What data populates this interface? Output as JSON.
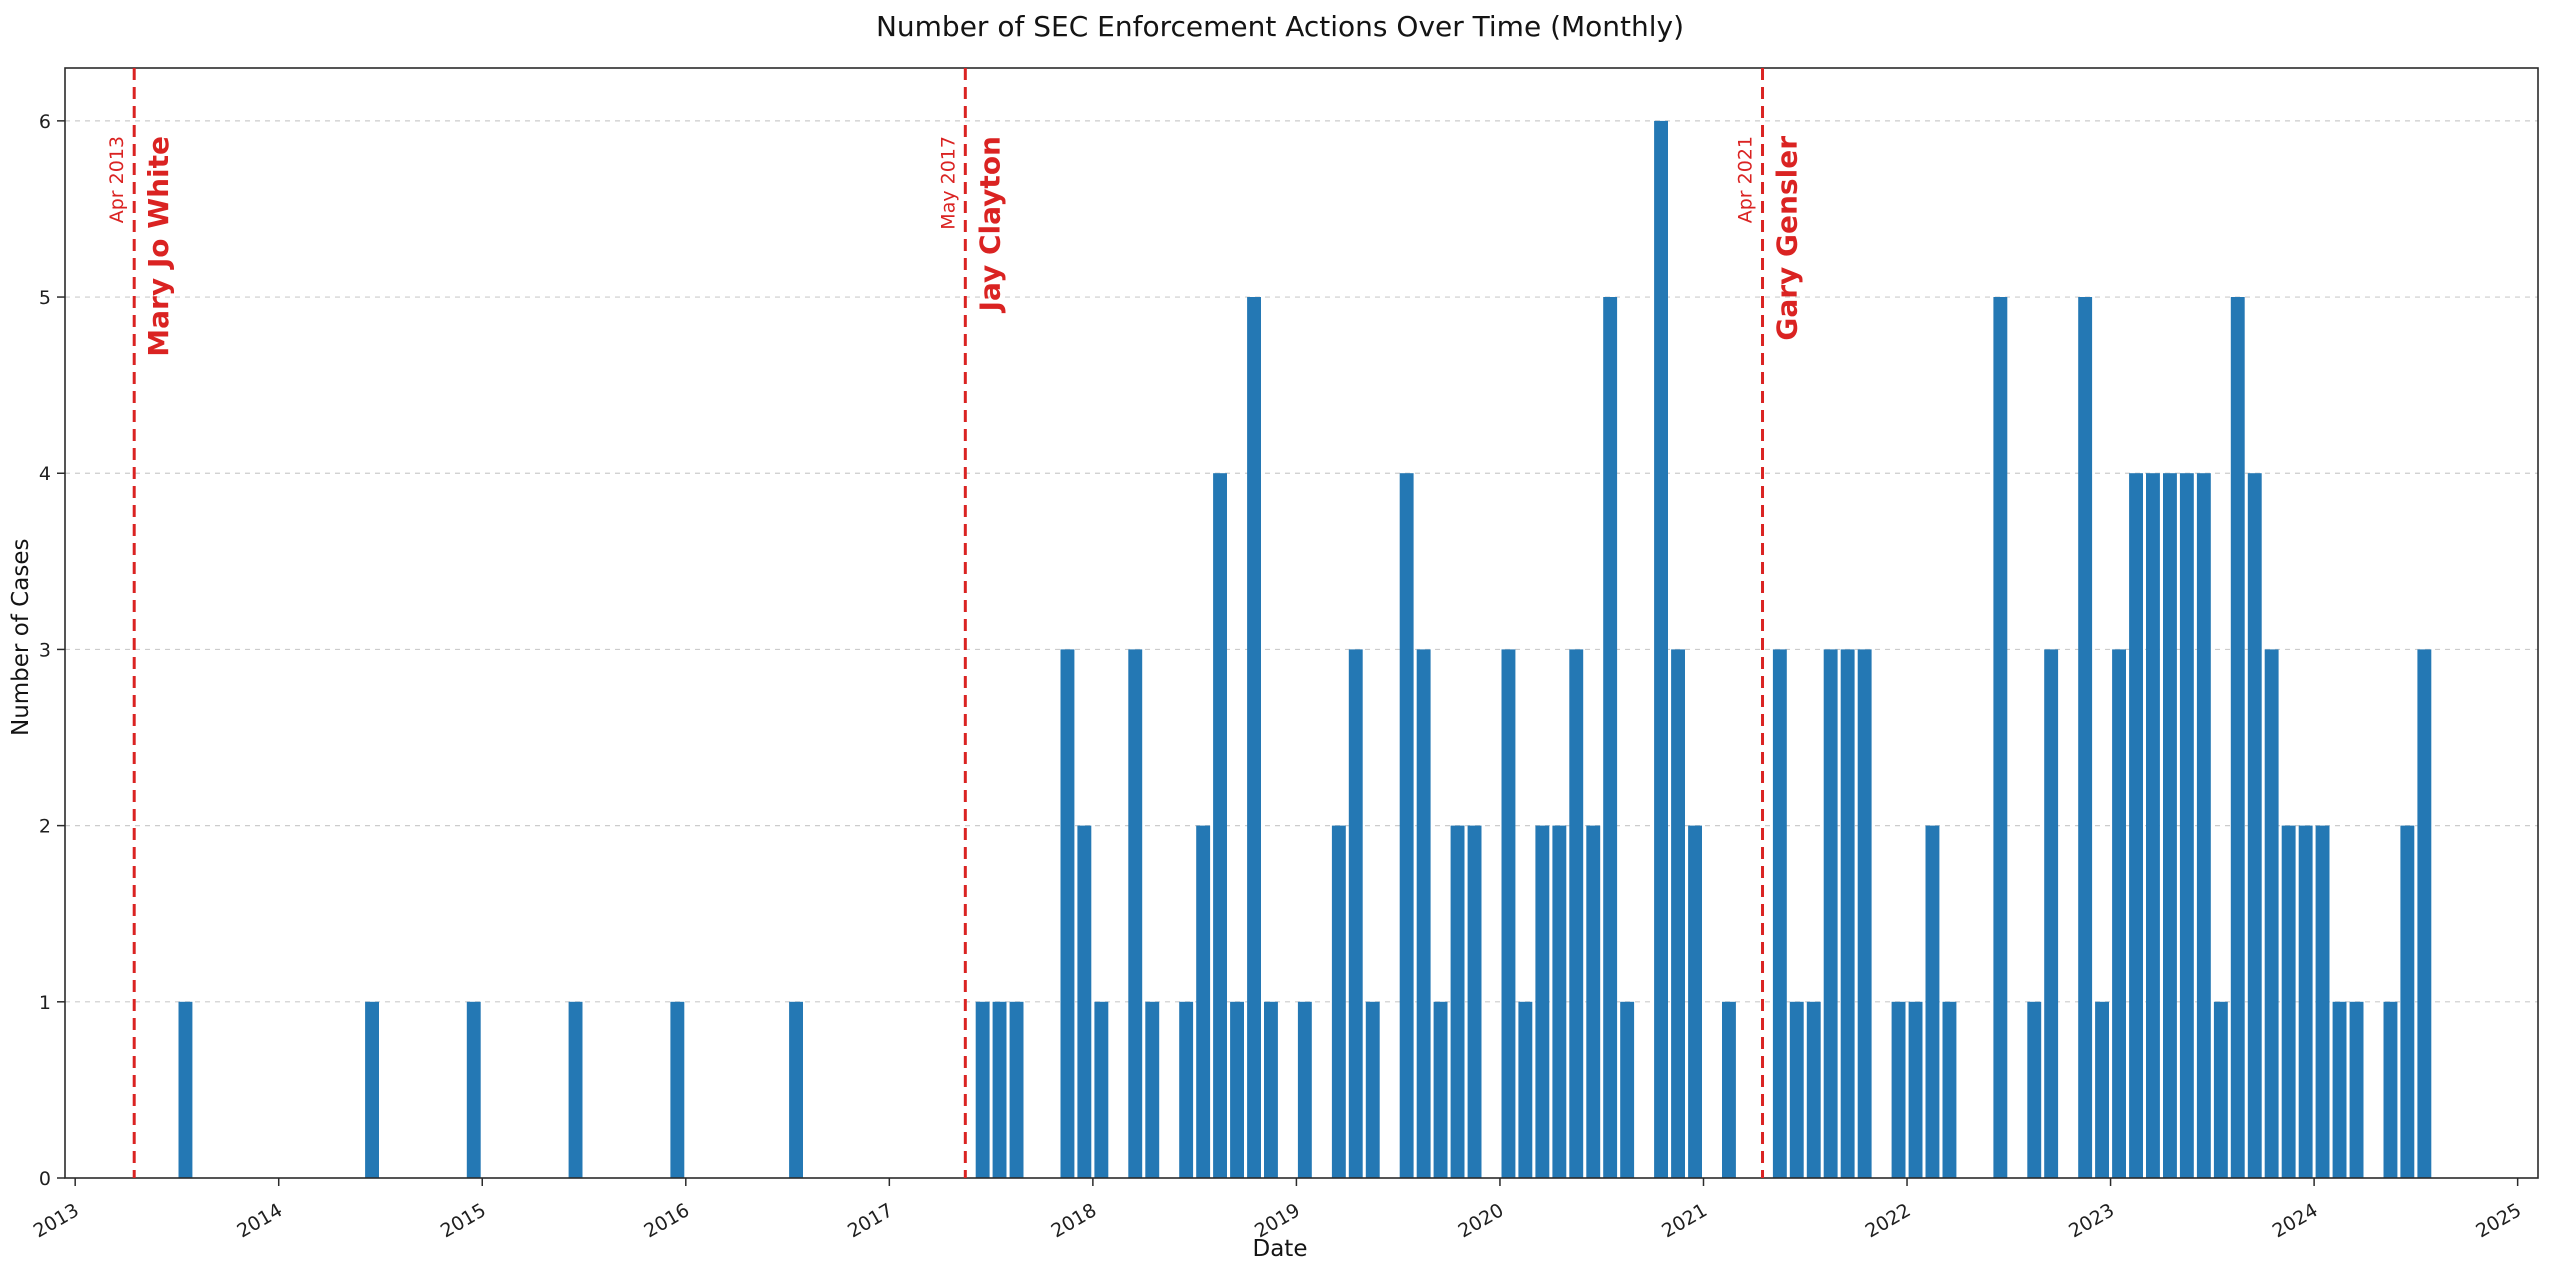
{
  "colors": {
    "bar": "#2478b4",
    "event": "#da2322",
    "grid": "#cccccc",
    "spine": "#2b2b2b",
    "tick_text": "#1f1f1f"
  },
  "chart_data": {
    "type": "bar",
    "title": "Number of SEC Enforcement Actions Over Time (Monthly)",
    "xlabel": "Date",
    "ylabel": "Number of Cases",
    "x_unit": "month",
    "x_domain_years": [
      2012.95,
      2025.1
    ],
    "ylim": [
      0,
      6.3
    ],
    "grid": "horizontal-dashed",
    "legend": "none",
    "x_tick_labels": [
      "2013",
      "2014",
      "2015",
      "2016",
      "2017",
      "2018",
      "2019",
      "2020",
      "2021",
      "2022",
      "2023",
      "2024",
      "2025"
    ],
    "y_tick_labels": [
      "0",
      "1",
      "2",
      "3",
      "4",
      "5",
      "6"
    ],
    "points": [
      [
        "2013-07",
        1
      ],
      [
        "2014-06",
        1
      ],
      [
        "2014-12",
        1
      ],
      [
        "2015-06",
        1
      ],
      [
        "2015-12",
        1
      ],
      [
        "2016-07",
        1
      ],
      [
        "2017-06",
        1
      ],
      [
        "2017-07",
        1
      ],
      [
        "2017-08",
        1
      ],
      [
        "2017-11",
        3
      ],
      [
        "2017-12",
        2
      ],
      [
        "2018-01",
        1
      ],
      [
        "2018-03",
        3
      ],
      [
        "2018-04",
        1
      ],
      [
        "2018-06",
        1
      ],
      [
        "2018-07",
        2
      ],
      [
        "2018-08",
        4
      ],
      [
        "2018-09",
        1
      ],
      [
        "2018-10",
        5
      ],
      [
        "2018-11",
        1
      ],
      [
        "2019-01",
        1
      ],
      [
        "2019-03",
        2
      ],
      [
        "2019-04",
        3
      ],
      [
        "2019-05",
        1
      ],
      [
        "2019-07",
        4
      ],
      [
        "2019-08",
        3
      ],
      [
        "2019-09",
        1
      ],
      [
        "2019-10",
        2
      ],
      [
        "2019-11",
        2
      ],
      [
        "2020-01",
        3
      ],
      [
        "2020-02",
        1
      ],
      [
        "2020-03",
        2
      ],
      [
        "2020-04",
        2
      ],
      [
        "2020-05",
        3
      ],
      [
        "2020-06",
        2
      ],
      [
        "2020-07",
        5
      ],
      [
        "2020-08",
        1
      ],
      [
        "2020-10",
        6
      ],
      [
        "2020-11",
        3
      ],
      [
        "2020-12",
        2
      ],
      [
        "2021-02",
        1
      ],
      [
        "2021-05",
        3
      ],
      [
        "2021-06",
        1
      ],
      [
        "2021-07",
        1
      ],
      [
        "2021-08",
        3
      ],
      [
        "2021-09",
        3
      ],
      [
        "2021-10",
        3
      ],
      [
        "2021-12",
        1
      ],
      [
        "2022-01",
        1
      ],
      [
        "2022-02",
        2
      ],
      [
        "2022-03",
        1
      ],
      [
        "2022-06",
        5
      ],
      [
        "2022-08",
        1
      ],
      [
        "2022-09",
        3
      ],
      [
        "2022-11",
        5
      ],
      [
        "2022-12",
        1
      ],
      [
        "2023-01",
        3
      ],
      [
        "2023-02",
        4
      ],
      [
        "2023-03",
        4
      ],
      [
        "2023-04",
        4
      ],
      [
        "2023-05",
        4
      ],
      [
        "2023-06",
        4
      ],
      [
        "2023-07",
        1
      ],
      [
        "2023-08",
        5
      ],
      [
        "2023-09",
        4
      ],
      [
        "2023-10",
        3
      ],
      [
        "2023-11",
        2
      ],
      [
        "2023-12",
        2
      ],
      [
        "2024-01",
        2
      ],
      [
        "2024-02",
        1
      ],
      [
        "2024-03",
        1
      ],
      [
        "2024-05",
        1
      ],
      [
        "2024-06",
        2
      ],
      [
        "2024-07",
        3
      ]
    ],
    "annotations": [
      {
        "date": "2013-04",
        "date_label": "Apr 2013",
        "name": "Mary Jo White"
      },
      {
        "date": "2017-05",
        "date_label": "May 2017",
        "name": "Jay Clayton"
      },
      {
        "date": "2021-04",
        "date_label": "Apr 2021",
        "name": "Gary Gensler"
      }
    ]
  }
}
